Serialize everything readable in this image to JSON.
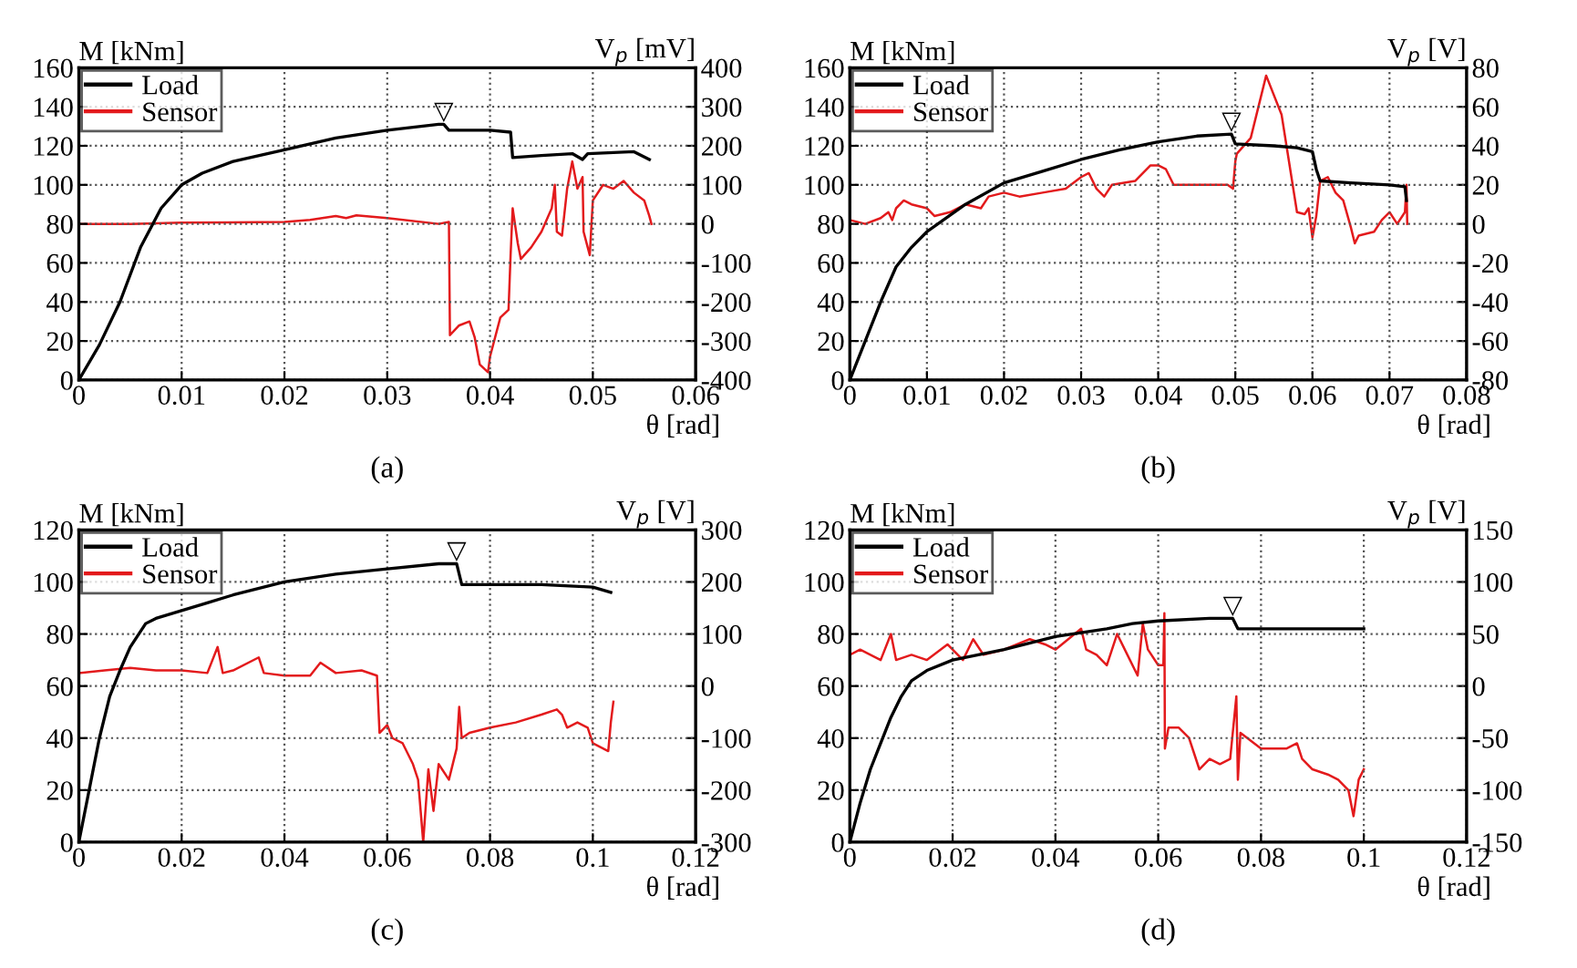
{
  "chart_data": [
    {
      "type": "line",
      "title": "(a)",
      "xlabel": "θ [rad]",
      "ylabel": "M [kNm]",
      "y2label": "V$_{p}$ [mV]",
      "xlim": [
        0,
        0.06
      ],
      "xticks": [
        0,
        0.01,
        0.02,
        0.03,
        0.04,
        0.05,
        0.06
      ],
      "ylim": [
        0,
        160
      ],
      "yticks": [
        0,
        20,
        40,
        60,
        80,
        100,
        120,
        140,
        160
      ],
      "y2lim": [
        -400,
        400
      ],
      "y2ticks": [
        -400,
        -300,
        -200,
        -100,
        0,
        100,
        200,
        300,
        400
      ],
      "grid": true,
      "legend": "top left",
      "annotations": [
        {
          "text": "▽",
          "x": 0.0355,
          "y": 131
        }
      ],
      "series": [
        {
          "name": "Load",
          "color": "#000000",
          "x": [
            0,
            0.002,
            0.004,
            0.006,
            0.008,
            0.01,
            0.012,
            0.015,
            0.02,
            0.025,
            0.03,
            0.035,
            0.0355,
            0.036,
            0.04,
            0.042,
            0.0422,
            0.045,
            0.048,
            0.049,
            0.0495,
            0.054,
            0.0555
          ],
          "values": [
            0,
            18,
            40,
            68,
            88,
            100,
            106,
            112,
            118,
            124,
            128,
            131,
            131,
            128,
            128,
            127,
            114,
            115,
            116,
            113,
            116,
            117,
            113
          ]
        },
        {
          "name": "Sensor",
          "color": "#e31a1c",
          "axis": "y2",
          "x": [
            0,
            0.005,
            0.01,
            0.02,
            0.0225,
            0.025,
            0.026,
            0.027,
            0.03,
            0.035,
            0.036,
            0.0361,
            0.037,
            0.038,
            0.0385,
            0.039,
            0.0398,
            0.04,
            0.041,
            0.0418,
            0.042,
            0.0422,
            0.0427,
            0.043,
            0.044,
            0.045,
            0.046,
            0.0463,
            0.0465,
            0.047,
            0.0475,
            0.048,
            0.0485,
            0.049,
            0.0491,
            0.0497,
            0.05,
            0.051,
            0.052,
            0.053,
            0.054,
            0.055,
            0.0555,
            0.0557
          ],
          "values": [
            0,
            0,
            3,
            5,
            10,
            20,
            15,
            22,
            15,
            0,
            5,
            -285,
            -260,
            -250,
            -290,
            -360,
            -380,
            -340,
            -240,
            -220,
            -80,
            40,
            -50,
            -90,
            -60,
            -20,
            40,
            100,
            -20,
            -30,
            90,
            160,
            90,
            120,
            -20,
            -80,
            60,
            100,
            90,
            110,
            80,
            60,
            20,
            0
          ]
        }
      ]
    },
    {
      "type": "line",
      "title": "(b)",
      "xlabel": "θ [rad]",
      "ylabel": "M [kNm]",
      "y2label": "V$_{p}$ [V]",
      "xlim": [
        0,
        0.08
      ],
      "xticks": [
        0,
        0.01,
        0.02,
        0.03,
        0.04,
        0.05,
        0.06,
        0.07,
        0.08
      ],
      "ylim": [
        0,
        160
      ],
      "yticks": [
        0,
        20,
        40,
        60,
        80,
        100,
        120,
        140,
        160
      ],
      "y2lim": [
        -80,
        80
      ],
      "y2ticks": [
        -80,
        -60,
        -40,
        -20,
        0,
        20,
        40,
        60,
        80
      ],
      "grid": true,
      "legend": "top left",
      "annotations": [
        {
          "text": "▽",
          "x": 0.0495,
          "y": 126
        }
      ],
      "series": [
        {
          "name": "Load",
          "color": "#000000",
          "x": [
            0,
            0.002,
            0.004,
            0.006,
            0.008,
            0.01,
            0.015,
            0.02,
            0.025,
            0.03,
            0.035,
            0.04,
            0.045,
            0.0495,
            0.05,
            0.055,
            0.058,
            0.06,
            0.0605,
            0.061,
            0.065,
            0.07,
            0.072,
            0.0722
          ],
          "values": [
            0,
            20,
            40,
            58,
            68,
            76,
            90,
            101,
            107,
            113,
            118,
            122,
            125,
            126,
            121,
            120,
            119,
            117,
            108,
            102,
            101,
            100,
            99,
            92
          ]
        },
        {
          "name": "Sensor",
          "color": "#e31a1c",
          "axis": "y2",
          "x": [
            0,
            0.002,
            0.004,
            0.005,
            0.0055,
            0.006,
            0.007,
            0.008,
            0.01,
            0.011,
            0.013,
            0.015,
            0.017,
            0.018,
            0.02,
            0.022,
            0.025,
            0.028,
            0.03,
            0.031,
            0.032,
            0.033,
            0.034,
            0.037,
            0.039,
            0.04,
            0.041,
            0.042,
            0.045,
            0.049,
            0.0497,
            0.05,
            0.0502,
            0.052,
            0.054,
            0.056,
            0.058,
            0.059,
            0.0595,
            0.06,
            0.0605,
            0.061,
            0.062,
            0.063,
            0.064,
            0.065,
            0.0655,
            0.066,
            0.068,
            0.069,
            0.07,
            0.071,
            0.072,
            0.0722,
            0.0723
          ],
          "values": [
            2,
            0,
            3,
            6,
            2,
            8,
            12,
            10,
            8,
            4,
            6,
            10,
            8,
            14,
            16,
            14,
            16,
            18,
            24,
            26,
            18,
            14,
            20,
            22,
            30,
            30,
            28,
            20,
            20,
            20,
            18,
            32,
            36,
            44,
            76,
            56,
            6,
            5,
            8,
            -7,
            4,
            22,
            24,
            16,
            12,
            -2,
            -10,
            -6,
            -4,
            2,
            6,
            0,
            6,
            20,
            0
          ]
        }
      ]
    },
    {
      "type": "line",
      "title": "(c)",
      "xlabel": "θ [rad]",
      "ylabel": "M [kNm]",
      "y2label": "V$_{p}$ [V]",
      "xlim": [
        0,
        0.12
      ],
      "xticks": [
        0,
        0.02,
        0.04,
        0.06,
        0.08,
        0.1,
        0.12
      ],
      "ylim": [
        0,
        120
      ],
      "yticks": [
        0,
        20,
        40,
        60,
        80,
        100,
        120
      ],
      "y2lim": [
        -300,
        300
      ],
      "y2ticks": [
        -300,
        -200,
        -100,
        0,
        100,
        200,
        300
      ],
      "grid": true,
      "legend": "top left",
      "annotations": [
        {
          "text": "▽",
          "x": 0.0735,
          "y": 107
        }
      ],
      "series": [
        {
          "name": "Load",
          "color": "#000000",
          "x": [
            0,
            0.002,
            0.004,
            0.006,
            0.008,
            0.01,
            0.013,
            0.015,
            0.02,
            0.025,
            0.03,
            0.04,
            0.05,
            0.06,
            0.07,
            0.0735,
            0.0745,
            0.08,
            0.09,
            0.1,
            0.1035
          ],
          "values": [
            0,
            20,
            40,
            56,
            66,
            75,
            84,
            86,
            89,
            92,
            95,
            100,
            103,
            105,
            107,
            107,
            99,
            99,
            99,
            98,
            96
          ]
        },
        {
          "name": "Sensor",
          "color": "#e31a1c",
          "axis": "y2",
          "x": [
            0,
            0.005,
            0.01,
            0.015,
            0.02,
            0.025,
            0.027,
            0.028,
            0.03,
            0.035,
            0.036,
            0.04,
            0.045,
            0.047,
            0.05,
            0.055,
            0.058,
            0.0585,
            0.06,
            0.061,
            0.063,
            0.065,
            0.066,
            0.067,
            0.068,
            0.069,
            0.07,
            0.072,
            0.0735,
            0.074,
            0.0745,
            0.076,
            0.08,
            0.085,
            0.09,
            0.093,
            0.094,
            0.095,
            0.097,
            0.099,
            0.1,
            0.103,
            0.1035,
            0.104
          ],
          "values": [
            25,
            30,
            35,
            30,
            30,
            25,
            75,
            25,
            30,
            55,
            25,
            20,
            20,
            45,
            25,
            30,
            20,
            -90,
            -75,
            -100,
            -110,
            -150,
            -180,
            -300,
            -160,
            -240,
            -150,
            -180,
            -120,
            -40,
            -100,
            -90,
            -80,
            -70,
            -55,
            -45,
            -55,
            -80,
            -70,
            -80,
            -110,
            -125,
            -70,
            -30
          ]
        }
      ]
    },
    {
      "type": "line",
      "title": "(d)",
      "xlabel": "θ [rad]",
      "ylabel": "M [kNm]",
      "y2label": "V$_{p}$ [V]",
      "xlim": [
        0,
        0.12
      ],
      "xticks": [
        0,
        0.02,
        0.04,
        0.06,
        0.08,
        0.1,
        0.12
      ],
      "ylim": [
        0,
        120
      ],
      "yticks": [
        0,
        20,
        40,
        60,
        80,
        100,
        120
      ],
      "y2lim": [
        -150,
        150
      ],
      "y2ticks": [
        -150,
        -100,
        -50,
        0,
        50,
        100,
        150
      ],
      "grid": true,
      "legend": "top left",
      "annotations": [
        {
          "text": "▽",
          "x": 0.0745,
          "y": 86
        }
      ],
      "series": [
        {
          "name": "Load",
          "color": "#000000",
          "x": [
            0,
            0.002,
            0.004,
            0.006,
            0.008,
            0.01,
            0.012,
            0.015,
            0.02,
            0.03,
            0.04,
            0.05,
            0.055,
            0.06,
            0.07,
            0.0745,
            0.0755,
            0.08,
            0.09,
            0.1
          ],
          "values": [
            0,
            15,
            28,
            38,
            48,
            56,
            62,
            66,
            70,
            74,
            79,
            82,
            84,
            85,
            86,
            86,
            82,
            82,
            82,
            82
          ]
        },
        {
          "name": "Sensor",
          "color": "#e31a1c",
          "axis": "y2",
          "x": [
            0,
            0.002,
            0.004,
            0.006,
            0.008,
            0.009,
            0.012,
            0.015,
            0.019,
            0.022,
            0.024,
            0.026,
            0.03,
            0.035,
            0.038,
            0.04,
            0.045,
            0.046,
            0.048,
            0.05,
            0.052,
            0.054,
            0.056,
            0.057,
            0.058,
            0.06,
            0.061,
            0.0612,
            0.0613,
            0.062,
            0.064,
            0.066,
            0.068,
            0.07,
            0.072,
            0.074,
            0.0752,
            0.0755,
            0.076,
            0.08,
            0.085,
            0.087,
            0.088,
            0.09,
            0.093,
            0.095,
            0.097,
            0.098,
            0.099,
            0.1
          ],
          "values": [
            30,
            35,
            30,
            25,
            50,
            25,
            30,
            25,
            40,
            25,
            45,
            30,
            35,
            45,
            40,
            35,
            55,
            35,
            30,
            20,
            50,
            30,
            10,
            60,
            35,
            20,
            20,
            70,
            -60,
            -40,
            -40,
            -50,
            -80,
            -70,
            -75,
            -70,
            -10,
            -90,
            -45,
            -60,
            -60,
            -55,
            -70,
            -80,
            -85,
            -90,
            -100,
            -125,
            -90,
            -80
          ]
        }
      ]
    }
  ]
}
